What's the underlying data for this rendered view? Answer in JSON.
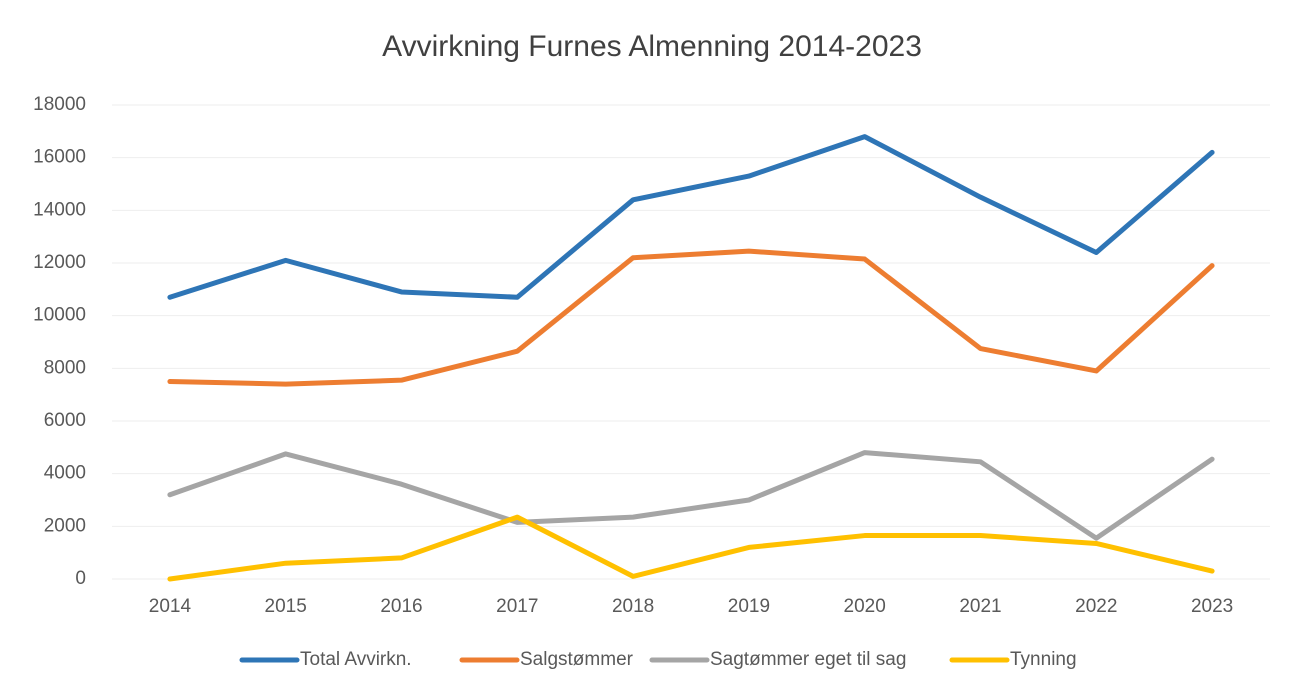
{
  "chart_data": {
    "type": "line",
    "title": "Avvirkning Furnes Almenning 2014-2023",
    "categories": [
      "2014",
      "2015",
      "2016",
      "2017",
      "2018",
      "2019",
      "2020",
      "2021",
      "2022",
      "2023"
    ],
    "series": [
      {
        "name": "Total Avvirkn.",
        "color": "#2e75b6",
        "values": [
          10700,
          12100,
          10900,
          10700,
          14400,
          15300,
          16800,
          14500,
          12400,
          16200
        ]
      },
      {
        "name": "Salgstømmer",
        "color": "#ed7d31",
        "values": [
          7500,
          7400,
          7550,
          8650,
          12200,
          12450,
          12150,
          8750,
          7900,
          11900
        ]
      },
      {
        "name": "Sagtømmer eget til sag",
        "color": "#a5a5a5",
        "values": [
          3200,
          4750,
          3600,
          2150,
          2350,
          3000,
          4800,
          4450,
          1550,
          4550
        ]
      },
      {
        "name": "Tynning",
        "color": "#ffc000",
        "values": [
          0,
          600,
          800,
          2350,
          100,
          1200,
          1650,
          1650,
          1350,
          300
        ]
      }
    ],
    "ylim": [
      0,
      18000
    ],
    "yticks": [
      0,
      2000,
      4000,
      6000,
      8000,
      10000,
      12000,
      14000,
      16000,
      18000
    ],
    "grid": true,
    "legend": "bottom"
  }
}
